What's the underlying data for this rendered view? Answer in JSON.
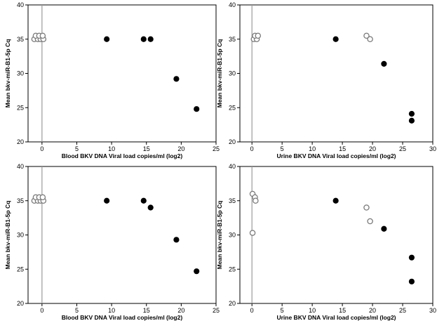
{
  "chart_data": [
    {
      "type": "scatter",
      "xlabel": "Blood BKV DNA Viral load copies/ml (log2)",
      "ylabel": "Mean bkv-miR-B1-5p Cq",
      "xlim": [
        -2,
        25
      ],
      "ylim": [
        20,
        40
      ],
      "xticks": [
        0,
        5,
        10,
        15,
        20,
        25
      ],
      "yticks": [
        20,
        25,
        30,
        35,
        40
      ],
      "reference_line_x": 0,
      "series": [
        {
          "marker": "open",
          "points": [
            [
              -1.1,
              35
            ],
            [
              -0.6,
              35
            ],
            [
              -0.2,
              35
            ],
            [
              0.2,
              35
            ],
            [
              -0.9,
              35.5
            ],
            [
              -0.4,
              35.5
            ],
            [
              0.1,
              35.5
            ]
          ]
        },
        {
          "marker": "filled",
          "points": [
            [
              9.3,
              35
            ],
            [
              14.6,
              35
            ],
            [
              15.6,
              35
            ],
            [
              19.3,
              29.2
            ],
            [
              22.2,
              24.8
            ]
          ]
        }
      ]
    },
    {
      "type": "scatter",
      "xlabel": "Urine BKV DNA Viral load copies/ml (log2)",
      "ylabel": "Mean bkv-miR-B1-5p Cq",
      "xlim": [
        -2,
        30
      ],
      "ylim": [
        20,
        40
      ],
      "xticks": [
        0,
        5,
        10,
        15,
        20,
        25,
        30
      ],
      "yticks": [
        20,
        25,
        30,
        35,
        40
      ],
      "reference_line_x": 0,
      "series": [
        {
          "marker": "open",
          "points": [
            [
              0.3,
              35
            ],
            [
              0.8,
              35
            ],
            [
              0.5,
              35.5
            ],
            [
              1.0,
              35.5
            ],
            [
              19.0,
              35.5
            ],
            [
              19.6,
              35
            ]
          ]
        },
        {
          "marker": "filled",
          "points": [
            [
              13.9,
              35
            ],
            [
              21.9,
              31.4
            ],
            [
              26.5,
              24.1
            ],
            [
              26.5,
              23.1
            ]
          ]
        }
      ]
    },
    {
      "type": "scatter",
      "xlabel": "Blood BKV DNA Viral load copies/ml (log2)",
      "ylabel": "Mean bkv-miR-B1-5p Cq",
      "xlim": [
        -2,
        25
      ],
      "ylim": [
        20,
        40
      ],
      "xticks": [
        0,
        5,
        10,
        15,
        20,
        25
      ],
      "yticks": [
        20,
        25,
        30,
        35,
        40
      ],
      "reference_line_x": 0,
      "series": [
        {
          "marker": "open",
          "points": [
            [
              -1.1,
              35
            ],
            [
              -0.6,
              35
            ],
            [
              -0.2,
              35
            ],
            [
              0.2,
              35
            ],
            [
              -0.9,
              35.5
            ],
            [
              -0.4,
              35.5
            ],
            [
              0.1,
              35.5
            ]
          ]
        },
        {
          "marker": "filled",
          "points": [
            [
              9.3,
              35
            ],
            [
              14.6,
              35
            ],
            [
              15.6,
              34
            ],
            [
              19.3,
              29.3
            ],
            [
              22.2,
              24.7
            ]
          ]
        }
      ]
    },
    {
      "type": "scatter",
      "xlabel": "Urine BKV DNA Viral load copies/ml (log2)",
      "ylabel": "Mean bkv-miR-B1-5p Cq",
      "xlim": [
        -2,
        30
      ],
      "ylim": [
        20,
        40
      ],
      "xticks": [
        0,
        5,
        10,
        15,
        20,
        25,
        30
      ],
      "yticks": [
        20,
        25,
        30,
        35,
        40
      ],
      "reference_line_x": 0,
      "series": [
        {
          "marker": "open",
          "points": [
            [
              0.1,
              36
            ],
            [
              0.5,
              35.5
            ],
            [
              0.6,
              35
            ],
            [
              0.1,
              30.3
            ],
            [
              19.0,
              34
            ],
            [
              19.6,
              32
            ]
          ]
        },
        {
          "marker": "filled",
          "points": [
            [
              13.9,
              35
            ],
            [
              21.9,
              30.9
            ],
            [
              26.5,
              26.7
            ],
            [
              26.5,
              23.2
            ]
          ]
        }
      ]
    }
  ]
}
